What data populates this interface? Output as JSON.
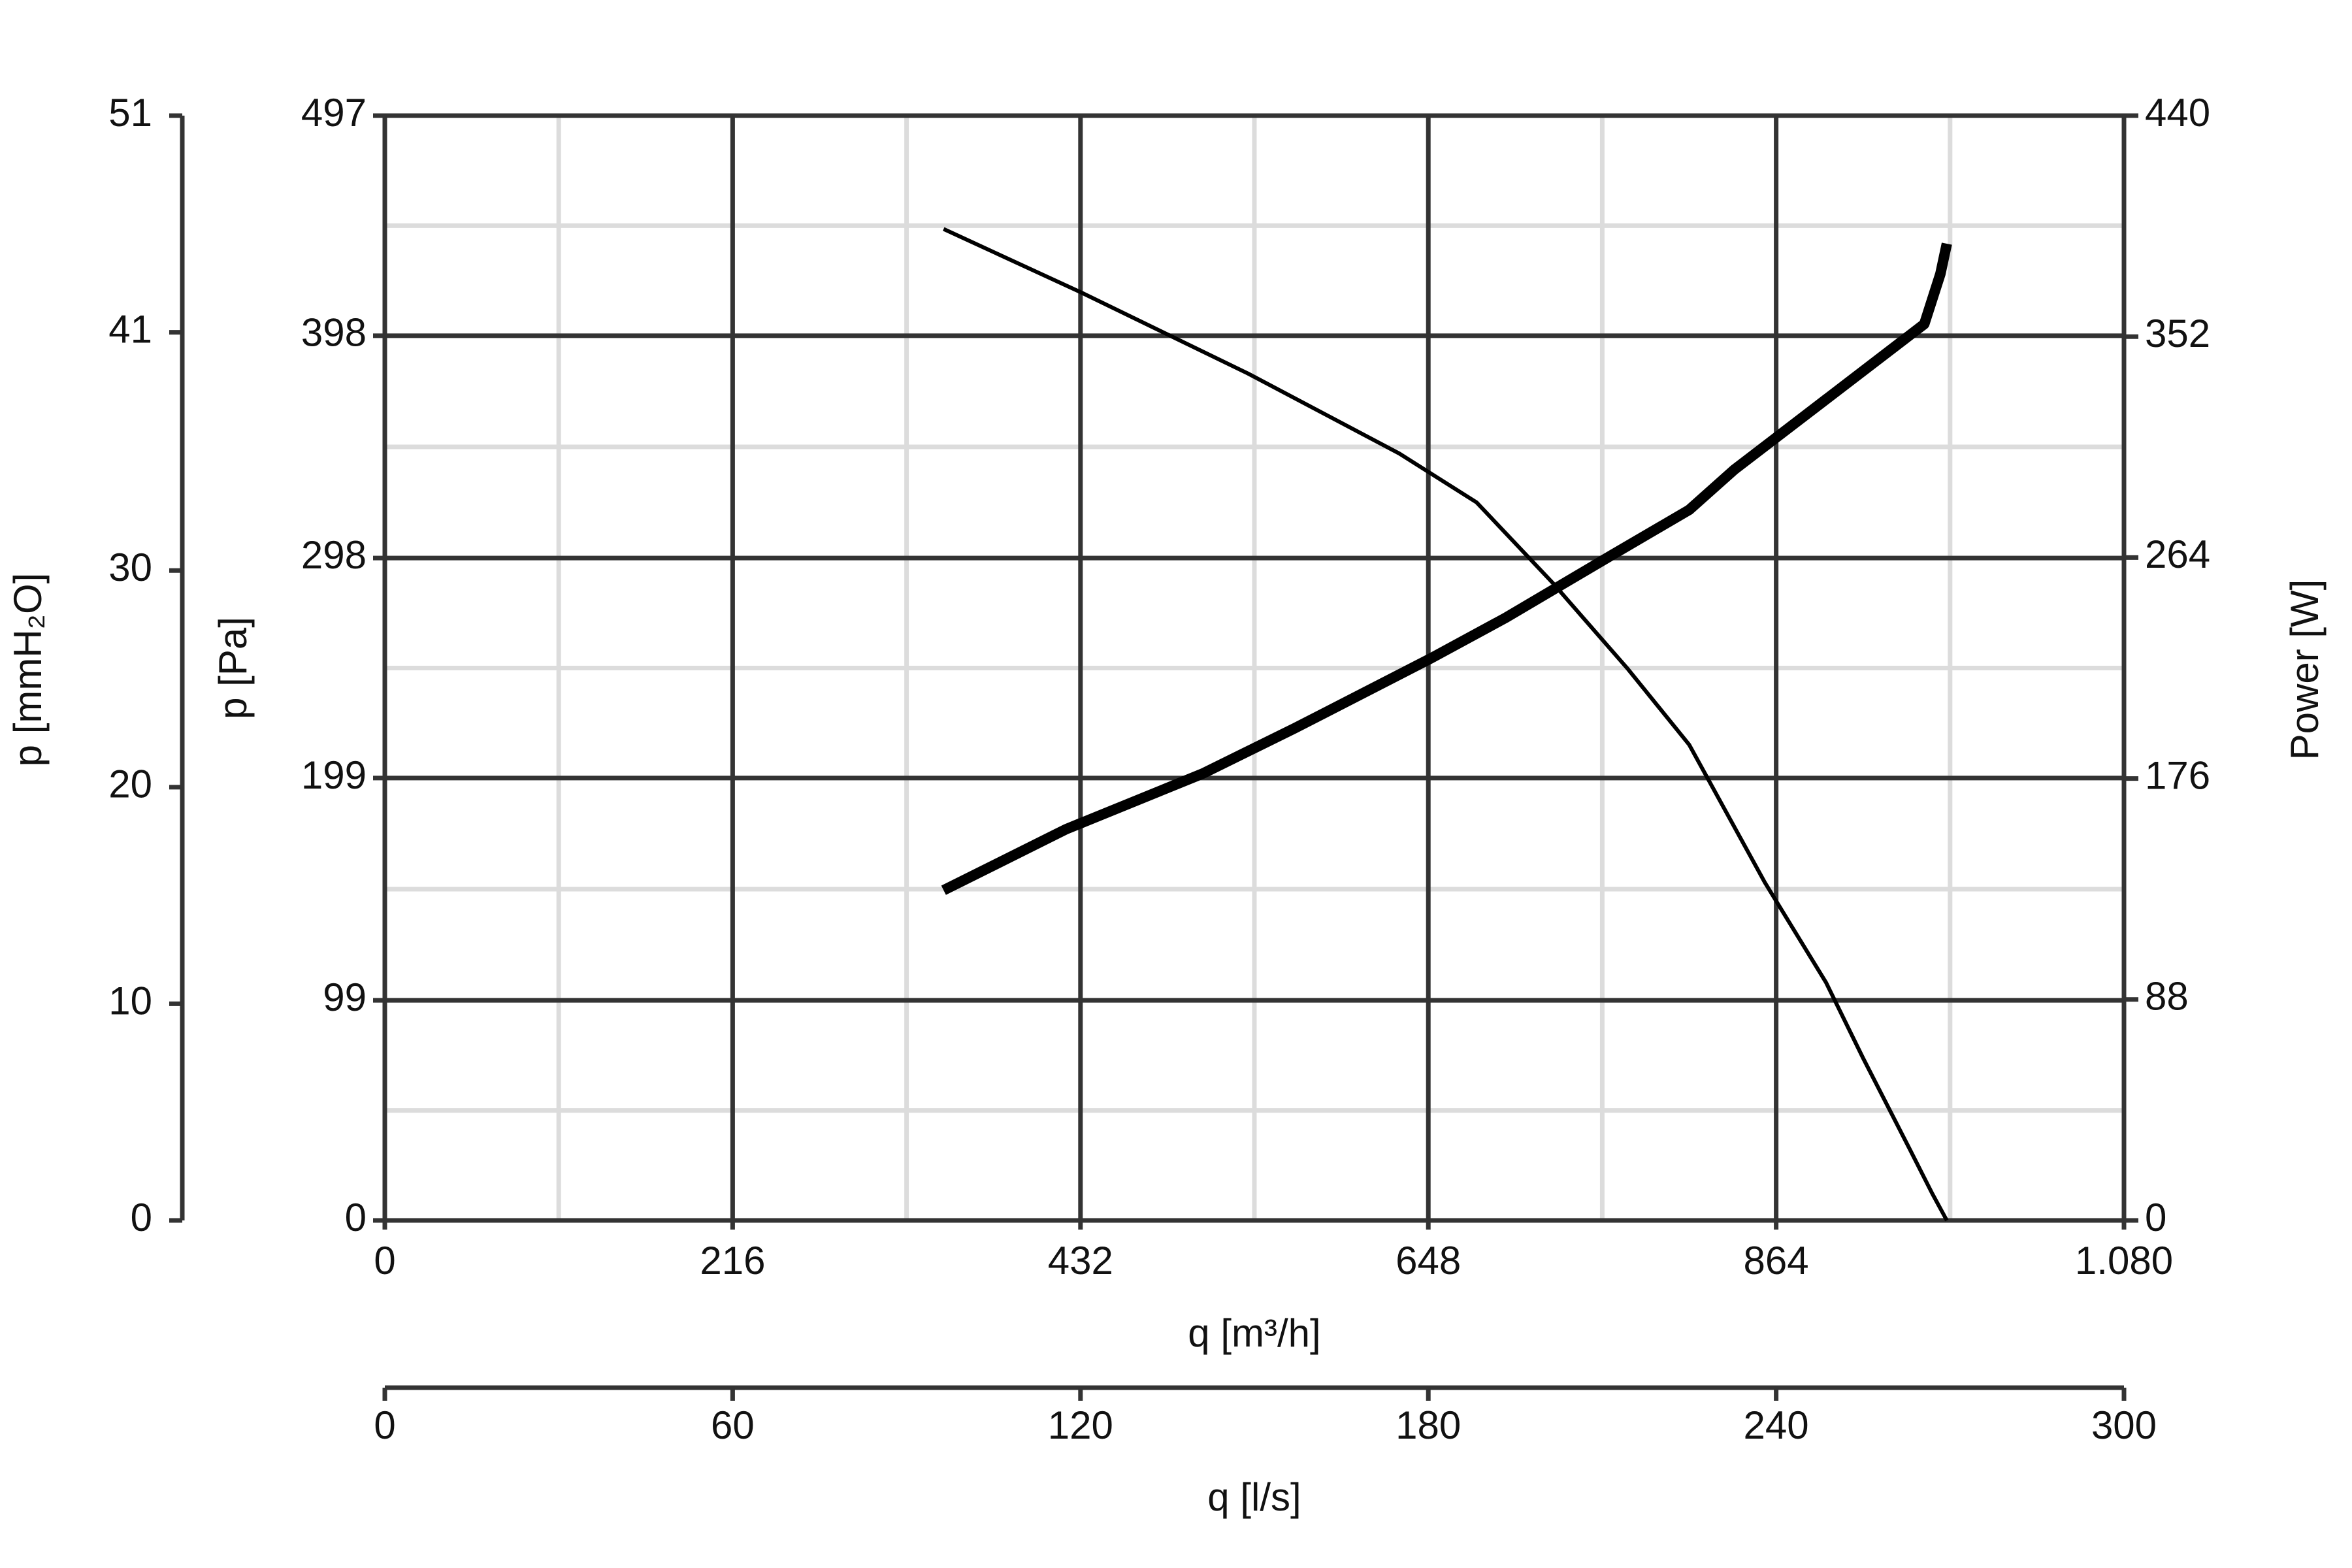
{
  "chart_data": {
    "type": "line",
    "xlabel": "q [m³/h]",
    "xlim": [
      0,
      1080
    ],
    "xticks": [
      0,
      216,
      432,
      648,
      864,
      {
        "value": 1080,
        "label": "1.080"
      }
    ],
    "x2label": "q [l/s]",
    "x2lim": [
      0,
      300
    ],
    "x2ticks": [
      0,
      60,
      120,
      180,
      240,
      300
    ],
    "ylabel": "p [Pa]",
    "ylim": [
      0,
      497
    ],
    "yticks": [
      0,
      99,
      199,
      298,
      398,
      497
    ],
    "y3label": "p [mmH₂O]",
    "y3lim": [
      0,
      51
    ],
    "y3ticks": [
      0,
      10,
      20,
      30,
      41,
      51
    ],
    "y2label": "Power [W]",
    "y2lim": [
      0,
      440
    ],
    "y2ticks": [
      0,
      88,
      176,
      264,
      352,
      440
    ],
    "grid": true,
    "series": [
      {
        "color": "#000000",
        "x": [
          347,
          432,
          536,
          630,
          678,
          725,
          772,
          810,
          857,
          895,
          918,
          947,
          961,
          970
        ],
        "values": [
          446,
          417.6,
          381,
          345,
          323,
          287,
          248,
          214,
          152,
          107,
          73,
          32,
          12,
          0
        ]
      },
      {
        "color": "#000000",
        "axis": "y2",
        "x": [
          347,
          423,
          508,
          565,
          650,
          696,
          762,
          810,
          838,
          895,
          956,
          966,
          970
        ],
        "values": [
          131.5,
          155.8,
          178,
          196,
          224,
          240,
          265,
          283,
          299,
          327,
          357,
          377,
          389
        ]
      }
    ]
  }
}
